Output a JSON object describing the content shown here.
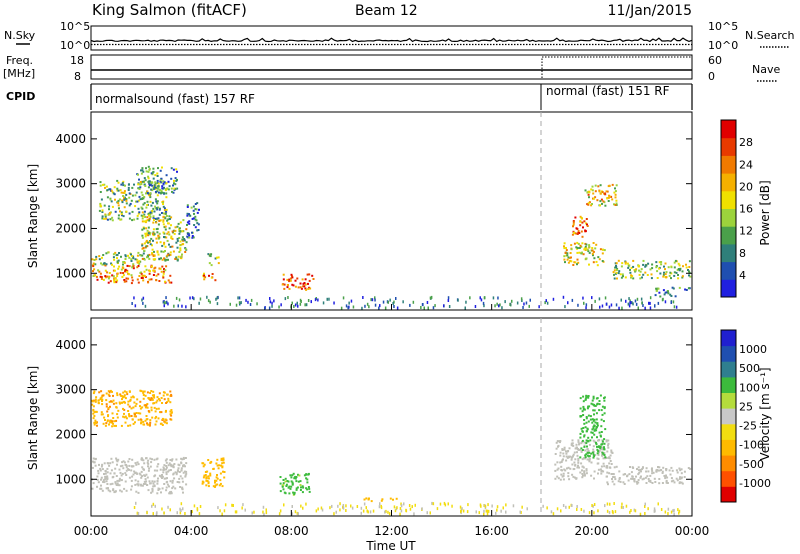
{
  "header": {
    "station": "King Salmon (fitACF)",
    "beam": "Beam 12",
    "date": "11/Jan/2015"
  },
  "side_labels": {
    "nsky": "N.Sky",
    "freq_line1": "Freq.",
    "freq_line2": "[MHz]",
    "cpid": "CPID",
    "nsearch": "N.Search",
    "nave": "Nave"
  },
  "strip_ticks": {
    "noise_left_top": "10^5",
    "noise_left_bottom": "10^0",
    "noise_right_top": "10^5",
    "noise_right_bottom": "10^0",
    "freq_left_top": "18",
    "freq_left_bottom": "8",
    "nave_right_top": "60",
    "nave_right_bottom": "0"
  },
  "cpid_segments": [
    {
      "label": "normalsound (fast) 157 RF",
      "start_hour": 0
    },
    {
      "label": "normal (fast) 151 RF",
      "start_hour": 18
    }
  ],
  "colors": {
    "power": [
      "#2020e0",
      "#1f4fb0",
      "#2f7f7a",
      "#4aa04a",
      "#9cd33c",
      "#f0e000",
      "#f5b000",
      "#f07a00",
      "#e83a00",
      "#e00000"
    ],
    "velocity": [
      "#e00000",
      "#ff5000",
      "#ff8c00",
      "#ffbb00",
      "#f2dd10",
      "#c8c8c8",
      "#b4dc3c",
      "#3cbb3c",
      "#2f7f8f",
      "#1f4fb0",
      "#2020d0"
    ],
    "scatter_gray": "#c0c0b8"
  },
  "chart_data": {
    "type": "heatmap",
    "x_axis": {
      "label": "Time UT",
      "range_hours": [
        0,
        24
      ],
      "tick_labels": [
        "00:00",
        "04:00",
        "08:00",
        "12:00",
        "16:00",
        "20:00",
        "00:00"
      ]
    },
    "y_axis": {
      "label": "Slant Range [km]",
      "range_km": [
        180,
        4600
      ],
      "tick_labels": [
        "1000",
        "2000",
        "3000",
        "4000"
      ]
    },
    "mode_change_hour": 18,
    "panels": [
      {
        "name": "power",
        "colorbar": {
          "label": "Power [dB]",
          "ticks": [
            "4",
            "8",
            "12",
            "16",
            "20",
            "24",
            "28"
          ],
          "range": [
            0,
            32
          ]
        },
        "echo_regions": [
          {
            "t0": 0.0,
            "t1": 3.2,
            "r0": 800,
            "r1": 1200,
            "level": 0.7
          },
          {
            "t0": 0.0,
            "t1": 2.0,
            "r0": 1200,
            "r1": 1500,
            "level": 0.45
          },
          {
            "t0": 0.3,
            "t1": 3.0,
            "r0": 2200,
            "r1": 3100,
            "level": 0.4
          },
          {
            "t0": 2.0,
            "t1": 3.8,
            "r0": 1300,
            "r1": 2300,
            "level": 0.5
          },
          {
            "t0": 1.8,
            "t1": 3.4,
            "r0": 2800,
            "r1": 3400,
            "level": 0.3
          },
          {
            "t0": 3.8,
            "t1": 4.3,
            "r0": 1800,
            "r1": 2600,
            "level": 0.2
          },
          {
            "t0": 4.4,
            "t1": 5.0,
            "r0": 850,
            "r1": 1050,
            "level": 0.75
          },
          {
            "t0": 4.6,
            "t1": 5.1,
            "r0": 1200,
            "r1": 1450,
            "level": 0.45
          },
          {
            "t0": 7.6,
            "t1": 8.9,
            "r0": 650,
            "r1": 1000,
            "level": 0.85
          },
          {
            "t0": 18.8,
            "t1": 20.5,
            "r0": 1200,
            "r1": 1700,
            "level": 0.55
          },
          {
            "t0": 19.2,
            "t1": 19.8,
            "r0": 1800,
            "r1": 2300,
            "level": 0.75
          },
          {
            "t0": 19.7,
            "t1": 21.0,
            "r0": 2500,
            "r1": 3000,
            "level": 0.6
          },
          {
            "t0": 20.8,
            "t1": 23.9,
            "r0": 900,
            "r1": 1300,
            "level": 0.45
          },
          {
            "t0": 22.5,
            "t1": 23.9,
            "r0": 500,
            "r1": 700,
            "level": 0.25
          }
        ]
      },
      {
        "name": "velocity",
        "colorbar": {
          "label": "Velocity [m s⁻¹]",
          "ticks": [
            "-1000",
            "-500",
            "-100",
            "-25",
            "25",
            "100",
            "500",
            "1000"
          ],
          "range": [
            -1200,
            1200
          ]
        },
        "echo_regions": [
          {
            "t0": 0.0,
            "t1": 3.8,
            "r0": 700,
            "r1": 1500,
            "velocity": 0
          },
          {
            "t0": 0.0,
            "t1": 3.2,
            "r0": 2200,
            "r1": 3000,
            "velocity": -400
          },
          {
            "t0": 4.4,
            "t1": 5.3,
            "r0": 850,
            "r1": 1500,
            "velocity": -300
          },
          {
            "t0": 7.5,
            "t1": 8.7,
            "r0": 650,
            "r1": 1150,
            "velocity": 150
          },
          {
            "t0": 10.8,
            "t1": 12.2,
            "r0": 530,
            "r1": 600,
            "velocity": -300
          },
          {
            "t0": 18.5,
            "t1": 20.8,
            "r0": 1000,
            "r1": 1900,
            "velocity": 0
          },
          {
            "t0": 19.5,
            "t1": 20.5,
            "r0": 1500,
            "r1": 2900,
            "velocity": 200
          },
          {
            "t0": 20.5,
            "t1": 23.9,
            "r0": 900,
            "r1": 1300,
            "velocity": 0
          }
        ]
      }
    ]
  }
}
